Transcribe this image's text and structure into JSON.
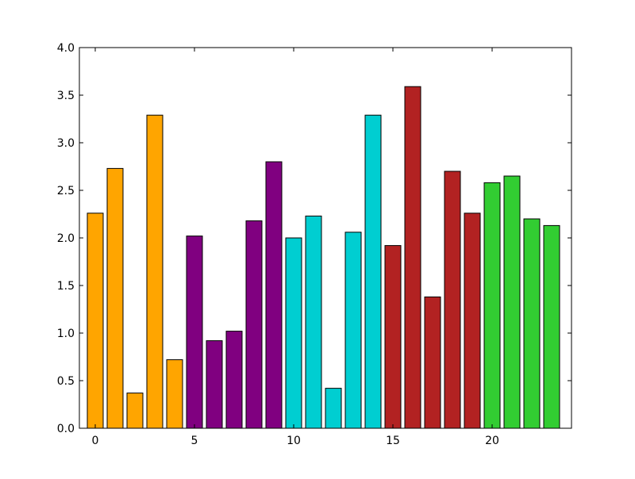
{
  "chart_data": {
    "type": "bar",
    "x": [
      0,
      1,
      2,
      3,
      4,
      5,
      6,
      7,
      8,
      9,
      10,
      11,
      12,
      13,
      14,
      15,
      16,
      17,
      18,
      19,
      20,
      21,
      22,
      23
    ],
    "values": [
      2.26,
      2.73,
      0.37,
      3.29,
      0.72,
      2.02,
      0.92,
      1.02,
      2.18,
      2.8,
      2.0,
      2.23,
      0.42,
      2.06,
      3.29,
      1.92,
      3.59,
      1.38,
      2.7,
      2.26,
      2.58,
      2.65,
      2.2,
      2.13
    ],
    "colors": [
      "#ffa500",
      "#ffa500",
      "#ffa500",
      "#ffa500",
      "#ffa500",
      "#800080",
      "#800080",
      "#800080",
      "#800080",
      "#800080",
      "#00ced1",
      "#00ced1",
      "#00ced1",
      "#00ced1",
      "#00ced1",
      "#b22222",
      "#b22222",
      "#b22222",
      "#b22222",
      "#b22222",
      "#32cd32",
      "#32cd32",
      "#32cd32",
      "#32cd32"
    ],
    "xlim": [
      -0.8,
      24
    ],
    "ylim": [
      0,
      4.0
    ],
    "xticks": [
      "0",
      "5",
      "10",
      "15",
      "20"
    ],
    "yticks": [
      "0.0",
      "0.5",
      "1.0",
      "1.5",
      "2.0",
      "2.5",
      "3.0",
      "3.5",
      "4.0"
    ],
    "title": "",
    "xlabel": "",
    "ylabel": "",
    "grid": false
  }
}
